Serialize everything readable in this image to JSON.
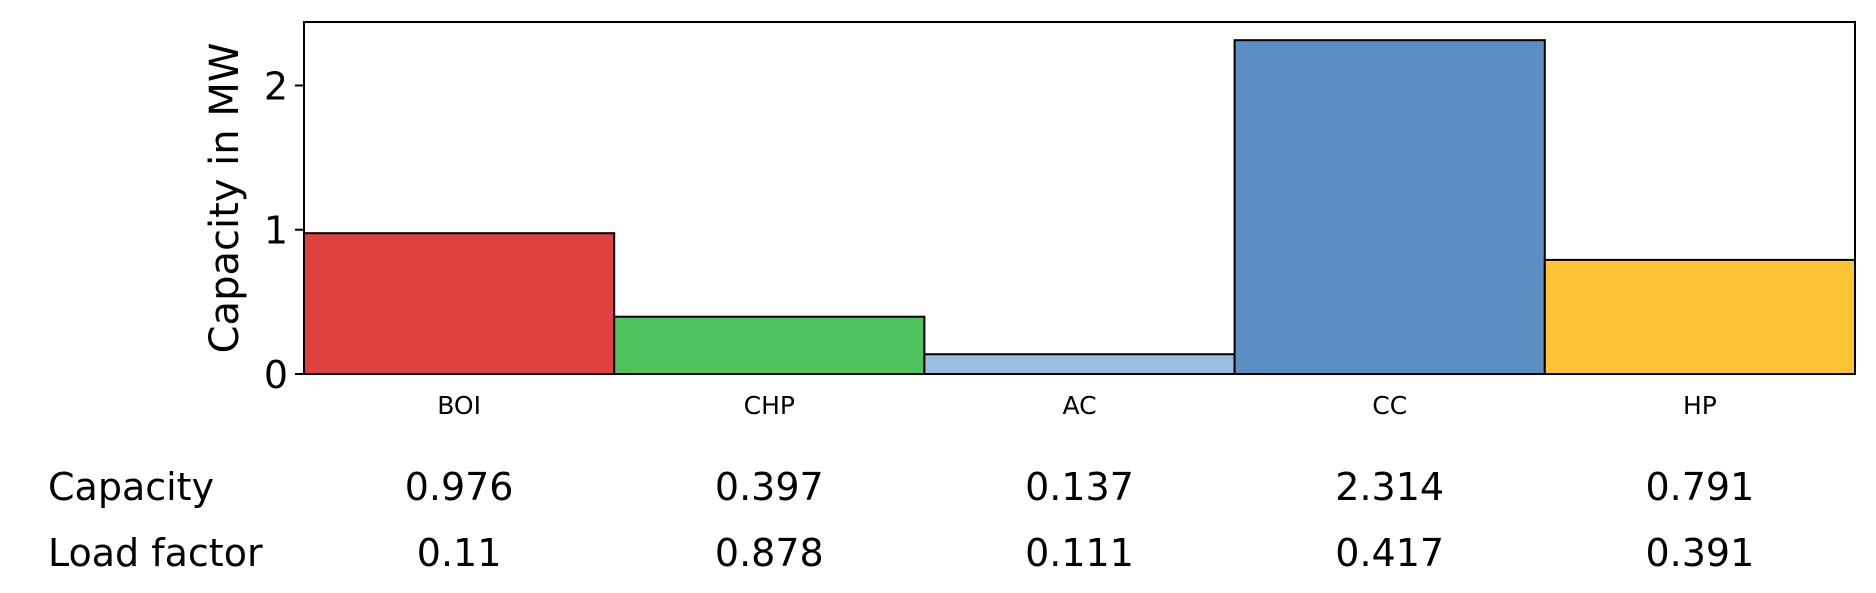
{
  "chart_data": {
    "type": "bar",
    "title": "",
    "xlabel": "",
    "ylabel": "Capacity in MW",
    "ylim": [
      0,
      2.44
    ],
    "yticks": [
      0,
      1,
      2
    ],
    "grid": false,
    "categories": [
      "BOI",
      "CHP",
      "AC",
      "CC",
      "HP"
    ],
    "values": [
      0.976,
      0.397,
      0.137,
      2.314,
      0.791
    ],
    "colors": [
      "#e04040",
      "#50c35e",
      "#9bbde3",
      "#5b8fc3",
      "#fec334"
    ],
    "table": {
      "rows": [
        {
          "label": "Capacity",
          "values": [
            "0.976",
            "0.397",
            "0.137",
            "2.314",
            "0.791"
          ]
        },
        {
          "label": "Load factor",
          "values": [
            "0.11",
            "0.878",
            "0.111",
            "0.417",
            "0.391"
          ]
        }
      ]
    }
  }
}
